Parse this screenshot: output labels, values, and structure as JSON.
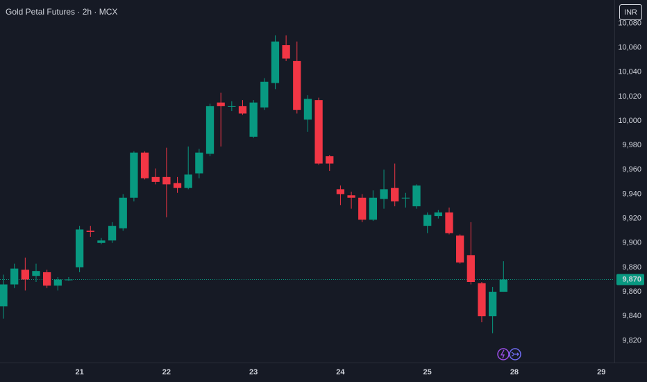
{
  "chart_data": {
    "type": "candlestick",
    "title": "Gold Petal Futures · 2h · MCX",
    "currency": "INR",
    "up_color": "#089981",
    "down_color": "#f23645",
    "open": [
      9848,
      9866,
      9878,
      9873,
      9876,
      9865,
      9870,
      9880,
      9910,
      9900,
      9902,
      9912,
      9937,
      9974,
      9954,
      9954,
      9949,
      9945,
      9957,
      9973,
      10015,
      10012,
      10012,
      9987,
      10011,
      10031,
      10062,
      10049,
      10001,
      10017,
      9971,
      9944,
      9939,
      9937,
      9919,
      9936,
      9945,
      9937,
      9930,
      9914,
      9922,
      9925,
      9906,
      9890,
      9867,
      9840,
      9860
    ],
    "high": [
      9874,
      9883,
      9888,
      9883,
      9878,
      9872,
      9872,
      9914,
      9914,
      9904,
      9917,
      9940,
      9975,
      9975,
      9961,
      9978,
      9954,
      9979,
      9977,
      10014,
      10023,
      10016,
      10017,
      10017,
      10035,
      10070,
      10070,
      10065,
      10021,
      10019,
      9972,
      9947,
      9942,
      9940,
      9943,
      9960,
      9965,
      9941,
      9948,
      9925,
      9927,
      9929,
      9907,
      9917,
      9868,
      9864,
      9885
    ],
    "low": [
      9838,
      9863,
      9861,
      9868,
      9863,
      9861,
      9869,
      9876,
      9905,
      9899,
      9900,
      9910,
      9934,
      9952,
      9948,
      9921,
      9941,
      9944,
      9953,
      9971,
      9979,
      10008,
      10005,
      9986,
      10009,
      10026,
      10049,
      10006,
      9991,
      9964,
      9959,
      9931,
      9928,
      9917,
      9918,
      9928,
      9930,
      9929,
      9928,
      9908,
      9920,
      9907,
      9883,
      9866,
      9835,
      9826,
      9860
    ],
    "close": [
      9866,
      9879,
      9870,
      9877,
      9865,
      9870,
      9870,
      9911,
      9909,
      9902,
      9914,
      9937,
      9974,
      9953,
      9950,
      9948,
      9945,
      9956,
      9974,
      10012,
      10012,
      10012,
      10006,
      10015,
      10032,
      10065,
      10051,
      10009,
      10018,
      9965,
      9965,
      9940,
      9937,
      9919,
      9937,
      9944,
      9934,
      9937,
      9947,
      9923,
      9925,
      9908,
      9884,
      9868,
      9840,
      9860,
      9870
    ],
    "last_price": {
      "value": 9870,
      "label": "9,870"
    },
    "xlim": [
      -0.32,
      56.2
    ],
    "xticks": [
      {
        "value": 7,
        "label": "21"
      },
      {
        "value": 15,
        "label": "22"
      },
      {
        "value": 23,
        "label": "23"
      },
      {
        "value": 31,
        "label": "24"
      },
      {
        "value": 39,
        "label": "25"
      },
      {
        "value": 47,
        "label": "28"
      },
      {
        "value": 55,
        "label": "29"
      }
    ],
    "ylim": [
      9802,
      10099
    ],
    "yticks": [
      {
        "value": 9820,
        "label": "9,820"
      },
      {
        "value": 9840,
        "label": "9,840"
      },
      {
        "value": 9860,
        "label": "9,860"
      },
      {
        "value": 9880,
        "label": "9,880"
      },
      {
        "value": 9900,
        "label": "9,900"
      },
      {
        "value": 9920,
        "label": "9,920"
      },
      {
        "value": 9940,
        "label": "9,940"
      },
      {
        "value": 9960,
        "label": "9,960"
      },
      {
        "value": 9980,
        "label": "9,980"
      },
      {
        "value": 10000,
        "label": "10,000"
      },
      {
        "value": 10020,
        "label": "10,020"
      },
      {
        "value": 10040,
        "label": "10,040"
      },
      {
        "value": 10060,
        "label": "10,060"
      },
      {
        "value": 10080,
        "label": "10,080"
      }
    ]
  }
}
